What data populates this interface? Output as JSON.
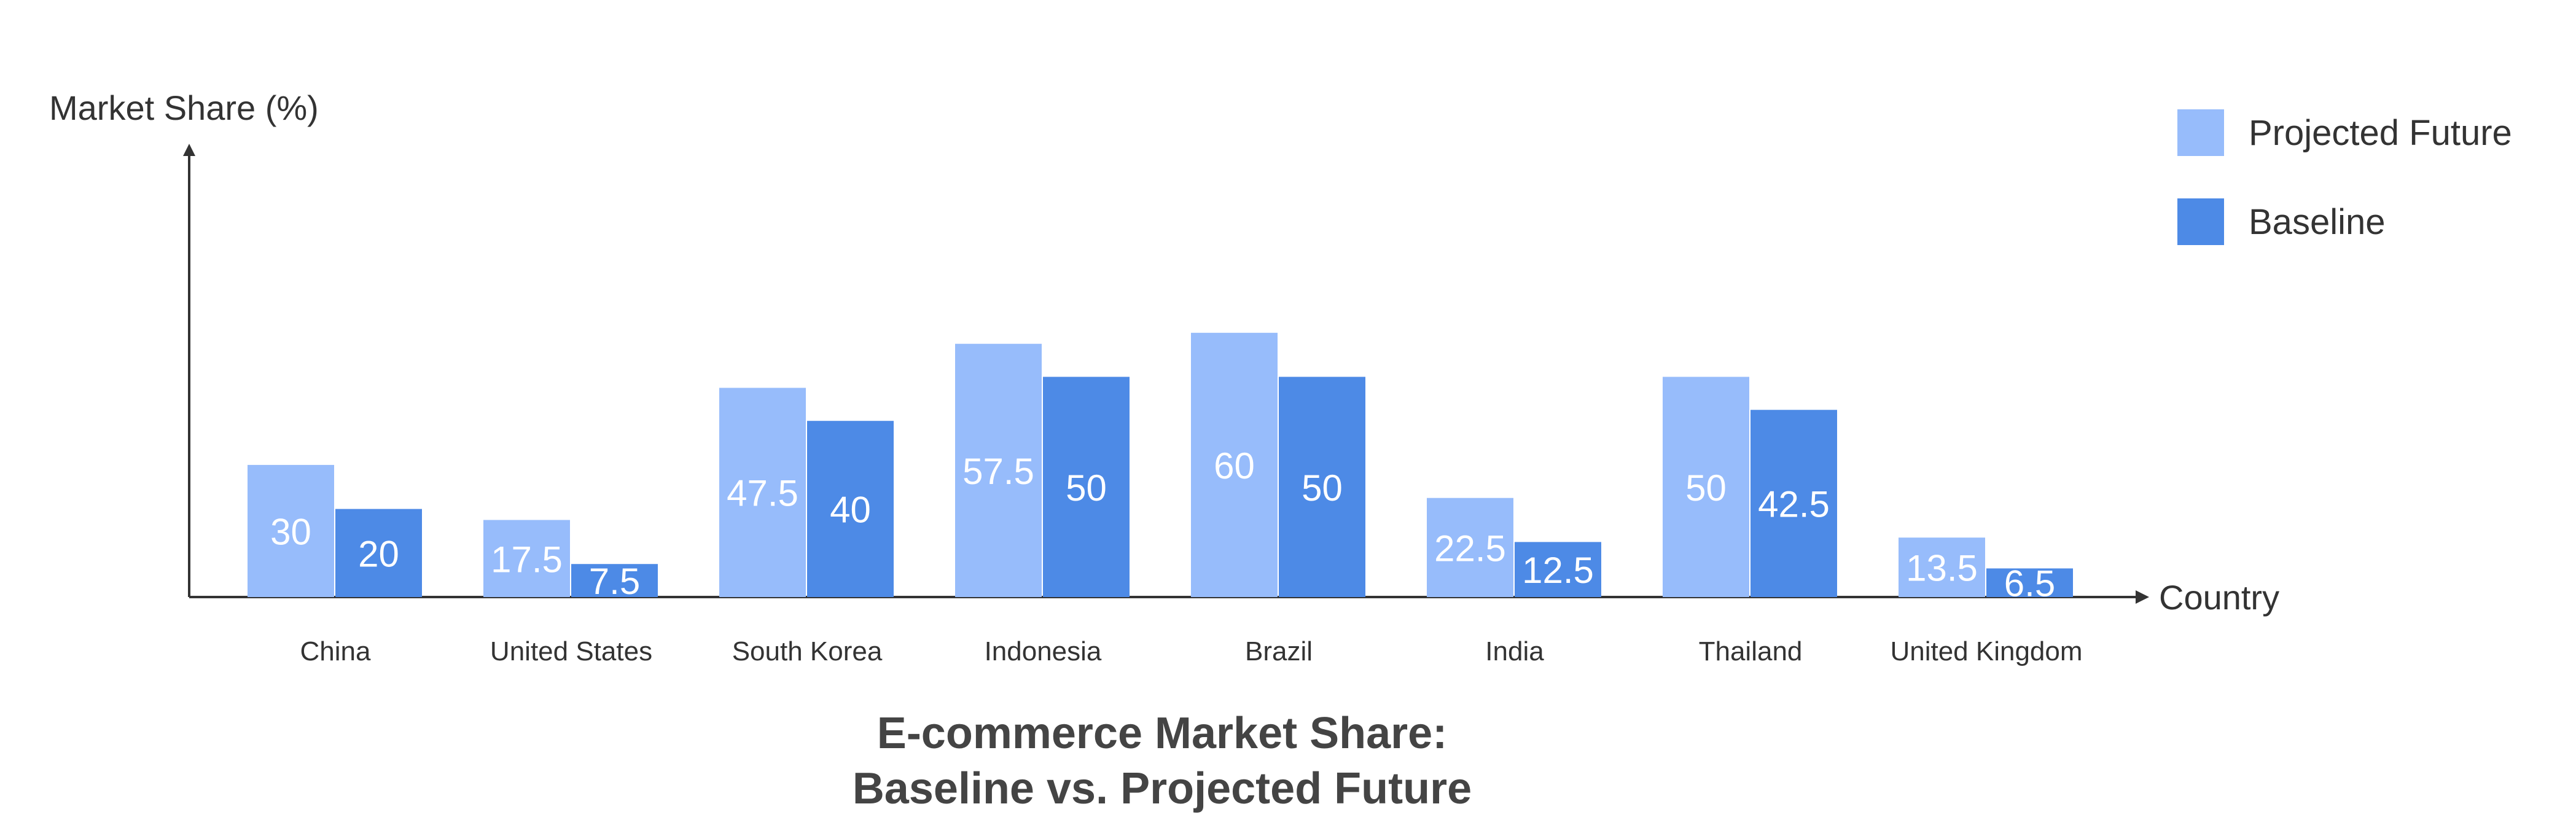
{
  "chart_data": {
    "type": "bar",
    "title": "E-commerce Market Share:",
    "subtitle": "Baseline vs. Projected Future",
    "xlabel": "Country",
    "ylabel": "Market Share (%)",
    "categories": [
      "China",
      "United States",
      "South Korea",
      "Indonesia",
      "Brazil",
      "India",
      "Thailand",
      "United Kingdom"
    ],
    "series": [
      {
        "name": "Projected Future",
        "color": "#97bcfb",
        "values": [
          30,
          17.5,
          47.5,
          57.5,
          60,
          22.5,
          50,
          13.5
        ],
        "labels": [
          "30",
          "17.5",
          "47.5",
          "57.5",
          "60",
          "22.5",
          "50",
          "13.5"
        ]
      },
      {
        "name": "Baseline",
        "color": "#4d8ae6",
        "values": [
          20,
          7.5,
          40,
          50,
          50,
          12.5,
          42.5,
          6.5
        ],
        "labels": [
          "20",
          "7.5",
          "40",
          "50",
          "50",
          "12.5",
          "42.5",
          "6.5"
        ]
      }
    ],
    "ylim": [
      0,
      100
    ],
    "grid": false,
    "legend_position": "top-right",
    "axis_color": "#333333",
    "text_color": "#333333",
    "title_color": "#444444"
  }
}
